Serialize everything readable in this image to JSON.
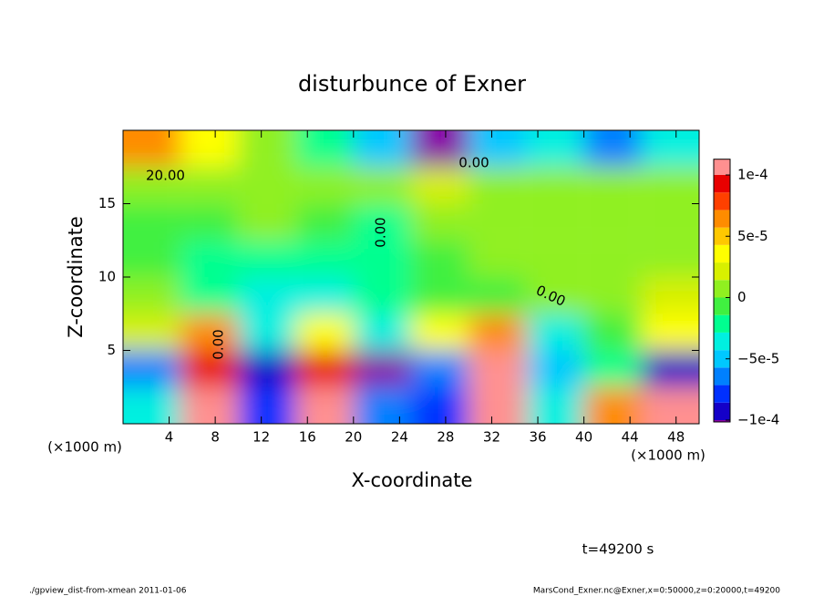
{
  "chart_data": {
    "type": "heatmap",
    "title": "disturbunce of Exner",
    "xlabel": "X-coordinate",
    "ylabel": "Z-coordinate",
    "x_unit_label": "(×1000 m)",
    "y_unit_label": "(×1000 m)",
    "time_label": "t=49200 s",
    "footer_left": "./gpview_dist-from-xmean  2011-01-06",
    "footer_right": "MarsCond_Exner.nc@Exner,x=0:50000,z=0:20000,t=49200",
    "contour_labels": [
      "20.00",
      "0.00",
      "0.00",
      "0.00",
      "0.00"
    ],
    "x": [
      2.5,
      7.5,
      12.5,
      17.5,
      22.5,
      27.5,
      32.5,
      37.5,
      42.5,
      47.5
    ],
    "y": [
      1.25,
      3.75,
      6.25,
      8.75,
      11.25,
      13.75,
      16.25,
      18.75
    ],
    "z": [
      [
        -3e-05,
        9e-05,
        -7e-05,
        9e-05,
        -6e-05,
        -7e-05,
        9e-05,
        -3e-05,
        5e-05,
        9e-05
      ],
      [
        -6e-05,
        8e-05,
        -8e-05,
        8e-05,
        -9e-05,
        -6e-05,
        9e-05,
        -5e-05,
        -2e-05,
        -8e-05
      ],
      [
        2e-05,
        5e-05,
        -3e-05,
        3e-05,
        -3e-05,
        3e-05,
        5e-05,
        -3e-05,
        -1e-05,
        3e-05
      ],
      [
        0,
        -2e-05,
        -3e-05,
        -3e-05,
        -2e-05,
        -1e-05,
        -1e-05,
        0,
        1e-05,
        2e-05
      ],
      [
        -1e-05,
        -2e-05,
        -2e-05,
        -2e-05,
        -2e-05,
        -1e-05,
        0,
        1e-05,
        0,
        0
      ],
      [
        -1e-05,
        -1e-05,
        0,
        -1e-05,
        -2e-05,
        0,
        1e-05,
        1e-05,
        1e-05,
        0
      ],
      [
        1e-05,
        1e-05,
        0,
        1e-05,
        1e-05,
        2e-05,
        1e-05,
        0,
        0,
        1e-05
      ],
      [
        6e-05,
        3e-05,
        1e-05,
        -2e-05,
        -5e-05,
        -9e-05,
        -4e-05,
        -3e-05,
        -6e-05,
        -3e-05
      ]
    ],
    "xlim": [
      0,
      50
    ],
    "ylim": [
      0,
      20
    ],
    "xticks": [
      4,
      8,
      12,
      16,
      20,
      24,
      28,
      32,
      36,
      40,
      44,
      48
    ],
    "yticks": [
      5,
      10,
      15
    ],
    "clim": [
      -0.0001,
      0.0001
    ],
    "cticks": [
      {
        "value": 0.0001,
        "label": "1e-4"
      },
      {
        "value": 5e-05,
        "label": "5e-5"
      },
      0,
      {
        "value": -5e-05,
        "label": "−5e-5"
      },
      {
        "value": -0.0001,
        "label": "−1e-4"
      }
    ],
    "colormap": [
      "#8a00a8",
      "#1400c8",
      "#0030ff",
      "#0080ff",
      "#00c8ff",
      "#00f0e0",
      "#00ff90",
      "#40f040",
      "#90f020",
      "#d8f000",
      "#ffff00",
      "#ffc800",
      "#ff8c00",
      "#ff4000",
      "#e80000",
      "#ff9090"
    ]
  }
}
